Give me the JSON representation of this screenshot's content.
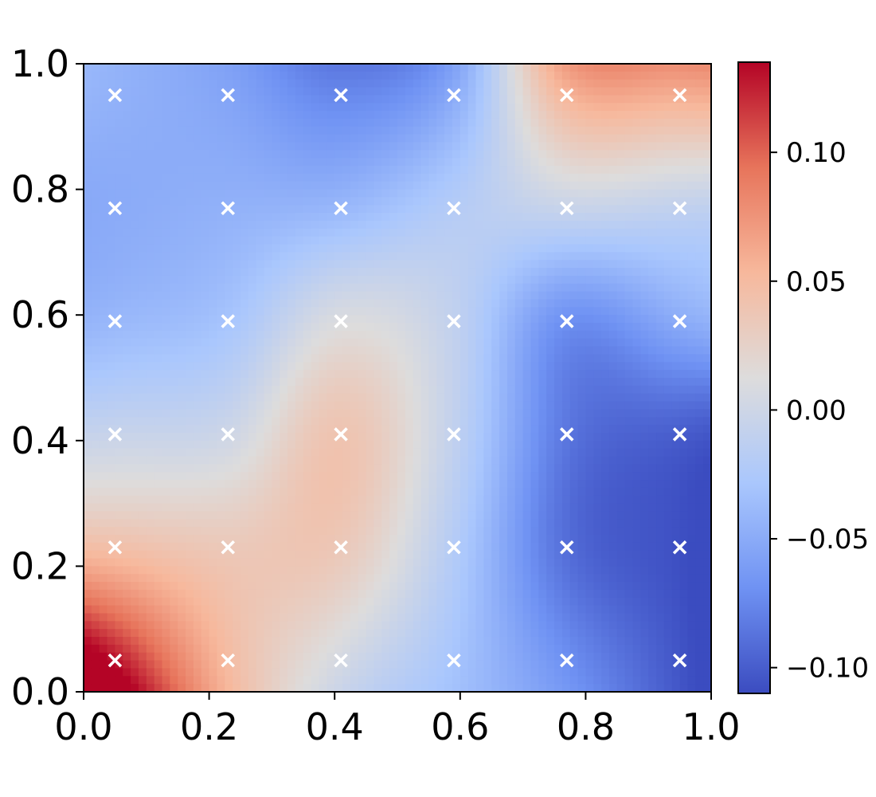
{
  "chart_data": {
    "type": "heatmap",
    "title": "",
    "xlabel": "",
    "ylabel": "",
    "colormap": "coolwarm",
    "colormap_stops": [
      "#3b4cc0",
      "#6f92f3",
      "#aac7fd",
      "#dddcdc",
      "#f7b89c",
      "#e7745b",
      "#b40426"
    ],
    "xlim": [
      0.0,
      1.0
    ],
    "ylim": [
      0.0,
      1.0
    ],
    "x_ticks": [
      "0.0",
      "0.2",
      "0.4",
      "0.6",
      "0.8",
      "1.0"
    ],
    "y_ticks": [
      "0.0",
      "0.2",
      "0.4",
      "0.6",
      "0.8",
      "1.0"
    ],
    "x_tick_values": [
      0.0,
      0.2,
      0.4,
      0.6,
      0.8,
      1.0
    ],
    "y_tick_values": [
      0.0,
      0.2,
      0.4,
      0.6,
      0.8,
      1.0
    ],
    "grid": false,
    "x": [
      0.05,
      0.23,
      0.41,
      0.59,
      0.77,
      0.95
    ],
    "y": [
      0.05,
      0.23,
      0.41,
      0.59,
      0.77,
      0.95
    ],
    "z": [
      [
        0.13,
        0.05,
        0.005,
        -0.03,
        -0.07,
        -0.105
      ],
      [
        0.045,
        0.035,
        0.035,
        -0.02,
        -0.09,
        -0.108
      ],
      [
        -0.005,
        0.0,
        0.04,
        -0.01,
        -0.085,
        -0.1
      ],
      [
        -0.04,
        -0.03,
        0.01,
        -0.01,
        -0.07,
        -0.05
      ],
      [
        -0.05,
        -0.045,
        -0.04,
        -0.02,
        -0.005,
        -0.01
      ],
      [
        -0.045,
        -0.055,
        -0.075,
        -0.05,
        0.055,
        0.06
      ]
    ],
    "markers": {
      "symbol": "x",
      "color": "#ffffff",
      "x": [
        0.05,
        0.23,
        0.41,
        0.59,
        0.77,
        0.95
      ],
      "y": [
        0.05,
        0.23,
        0.41,
        0.59,
        0.77,
        0.95
      ]
    },
    "colorbar": {
      "vmin": -0.11,
      "vmax": 0.135,
      "ticks": [
        "−0.10",
        "−0.05",
        "0.00",
        "0.05",
        "0.10"
      ],
      "tick_values": [
        -0.1,
        -0.05,
        0.0,
        0.05,
        0.1
      ]
    }
  }
}
